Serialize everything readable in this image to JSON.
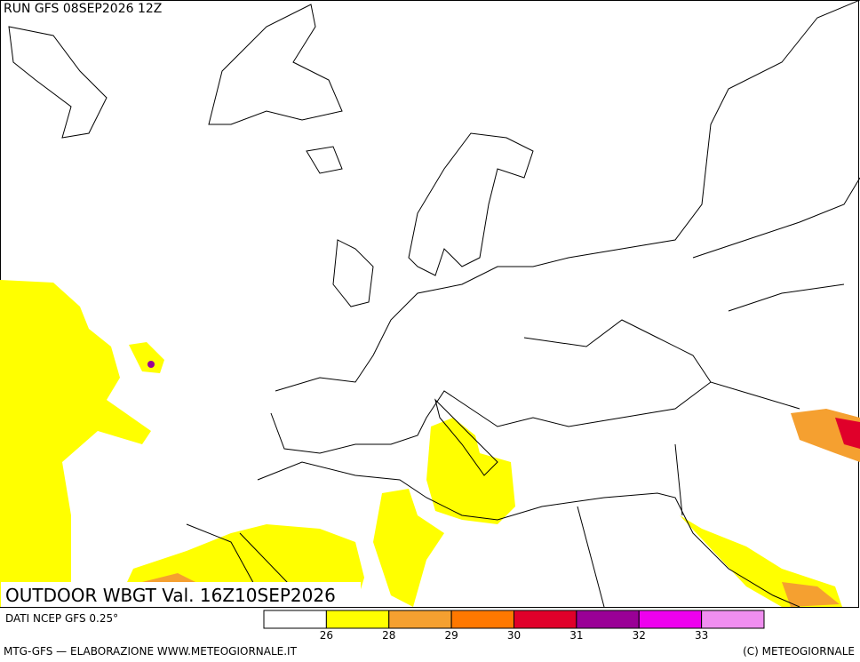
{
  "header": {
    "run": "RUN GFS 08SEP2026 12Z"
  },
  "title": "OUTDOOR WBGT Val. 16Z10SEP2026",
  "source": "DATI NCEP GFS 0.25°",
  "legend": {
    "colors": [
      "#ffffff",
      "#ffff00",
      "#f5a030",
      "#ff7800",
      "#e0002a",
      "#9a0096",
      "#ee00ee",
      "#f08ef0"
    ],
    "ticks": [
      "26",
      "28",
      "29",
      "30",
      "31",
      "32",
      "33"
    ]
  },
  "footer": {
    "left": "MTG-GFS — ELABORAZIONE WWW.METEOGIORNALE.IT",
    "right": "(C) METEOGIORNALE"
  }
}
